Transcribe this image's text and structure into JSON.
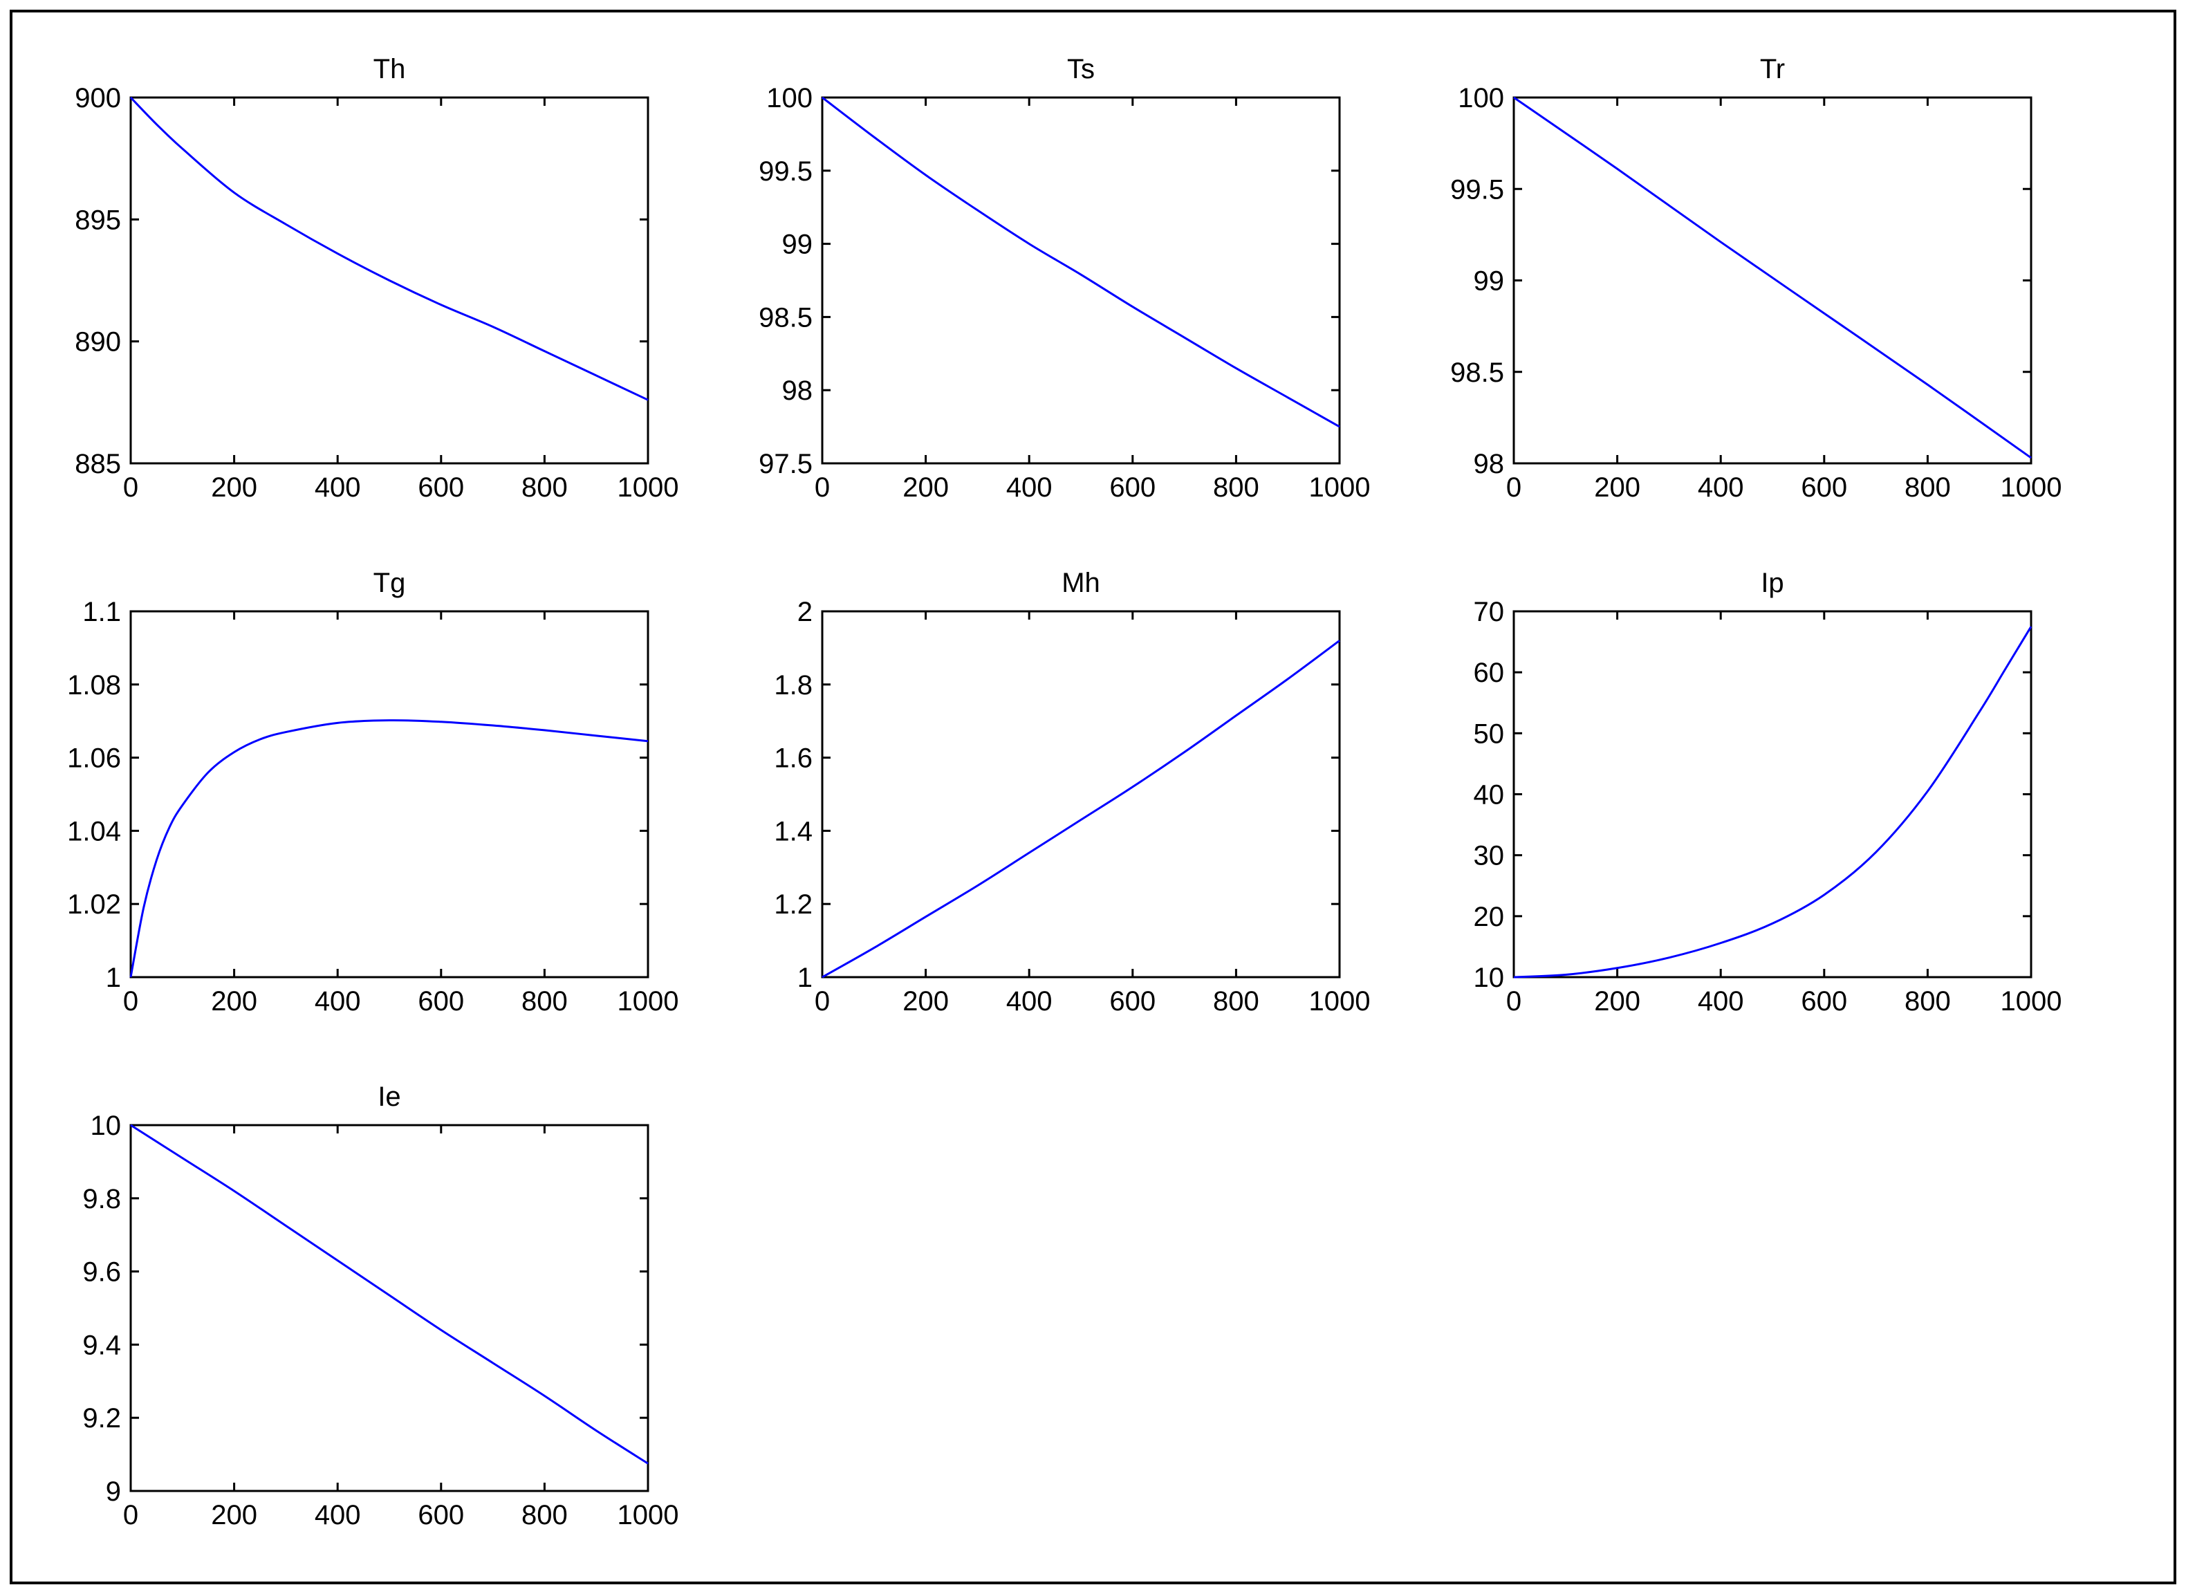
{
  "figure": {
    "line_color": "#0000ff",
    "axis_color": "#000000",
    "background": "#ffffff"
  },
  "chart_data": [
    {
      "type": "line",
      "title": "Th",
      "xlim": [
        0,
        1000
      ],
      "ylim": [
        885,
        900
      ],
      "xticks": [
        0,
        200,
        400,
        600,
        800,
        1000
      ],
      "yticks": [
        885,
        890,
        895,
        900
      ],
      "series": [
        {
          "x": [
            0,
            50,
            100,
            200,
            300,
            400,
            500,
            600,
            700,
            800,
            900,
            1000
          ],
          "y": [
            900,
            898.9,
            897.9,
            896.1,
            894.8,
            893.6,
            892.5,
            891.5,
            890.6,
            889.6,
            888.6,
            887.6
          ]
        }
      ]
    },
    {
      "type": "line",
      "title": "Ts",
      "xlim": [
        0,
        1000
      ],
      "ylim": [
        97.5,
        100
      ],
      "xticks": [
        0,
        200,
        400,
        600,
        800,
        1000
      ],
      "yticks": [
        97.5,
        98,
        98.5,
        99,
        99.5,
        100
      ],
      "series": [
        {
          "x": [
            0,
            100,
            200,
            300,
            400,
            500,
            600,
            700,
            800,
            900,
            1000
          ],
          "y": [
            100,
            99.73,
            99.47,
            99.23,
            99.0,
            98.79,
            98.57,
            98.36,
            98.15,
            97.95,
            97.75
          ]
        }
      ]
    },
    {
      "type": "line",
      "title": "Tr",
      "xlim": [
        0,
        1000
      ],
      "ylim": [
        98,
        100
      ],
      "xticks": [
        0,
        200,
        400,
        600,
        800,
        1000
      ],
      "yticks": [
        98,
        98.5,
        99,
        99.5,
        100
      ],
      "series": [
        {
          "x": [
            0,
            200,
            400,
            600,
            800,
            1000
          ],
          "y": [
            100,
            99.61,
            99.21,
            98.82,
            98.43,
            98.03
          ]
        }
      ]
    },
    {
      "type": "line",
      "title": "Tg",
      "xlim": [
        0,
        1000
      ],
      "ylim": [
        1,
        1.1
      ],
      "xticks": [
        0,
        200,
        400,
        600,
        800,
        1000
      ],
      "yticks": [
        1,
        1.02,
        1.04,
        1.06,
        1.08,
        1.1
      ],
      "series": [
        {
          "x": [
            0,
            25,
            50,
            75,
            100,
            150,
            200,
            250,
            300,
            400,
            500,
            600,
            700,
            800,
            900,
            1000
          ],
          "y": [
            1.0,
            1.019,
            1.032,
            1.041,
            1.047,
            1.056,
            1.0615,
            1.065,
            1.067,
            1.0695,
            1.0702,
            1.0698,
            1.0688,
            1.0675,
            1.066,
            1.0645
          ]
        }
      ]
    },
    {
      "type": "line",
      "title": "Mh",
      "xlim": [
        0,
        1000
      ],
      "ylim": [
        1,
        2
      ],
      "xticks": [
        0,
        200,
        400,
        600,
        800,
        1000
      ],
      "yticks": [
        1,
        1.2,
        1.4,
        1.6,
        1.8,
        2
      ],
      "series": [
        {
          "x": [
            0,
            100,
            200,
            300,
            400,
            500,
            600,
            700,
            800,
            900,
            1000
          ],
          "y": [
            1.0,
            1.08,
            1.165,
            1.25,
            1.34,
            1.43,
            1.52,
            1.615,
            1.715,
            1.815,
            1.92
          ]
        }
      ]
    },
    {
      "type": "line",
      "title": "Ip",
      "xlim": [
        0,
        1000
      ],
      "ylim": [
        10,
        70
      ],
      "xticks": [
        0,
        200,
        400,
        600,
        800,
        1000
      ],
      "yticks": [
        10,
        20,
        30,
        40,
        50,
        60,
        70
      ],
      "series": [
        {
          "x": [
            0,
            100,
            200,
            300,
            400,
            500,
            600,
            700,
            800,
            900,
            950,
            1000
          ],
          "y": [
            10,
            10.4,
            11.5,
            13.2,
            15.6,
            18.8,
            23.5,
            30.5,
            40.5,
            53.5,
            60.5,
            67.5
          ]
        }
      ]
    },
    {
      "type": "line",
      "title": "Ie",
      "xlim": [
        0,
        1000
      ],
      "ylim": [
        9,
        10
      ],
      "xticks": [
        0,
        200,
        400,
        600,
        800,
        1000
      ],
      "yticks": [
        9,
        9.2,
        9.4,
        9.6,
        9.8,
        10
      ],
      "series": [
        {
          "x": [
            0,
            100,
            200,
            300,
            400,
            500,
            600,
            700,
            800,
            900,
            1000
          ],
          "y": [
            10,
            9.91,
            9.82,
            9.725,
            9.63,
            9.535,
            9.44,
            9.35,
            9.26,
            9.165,
            9.075
          ]
        }
      ]
    }
  ]
}
